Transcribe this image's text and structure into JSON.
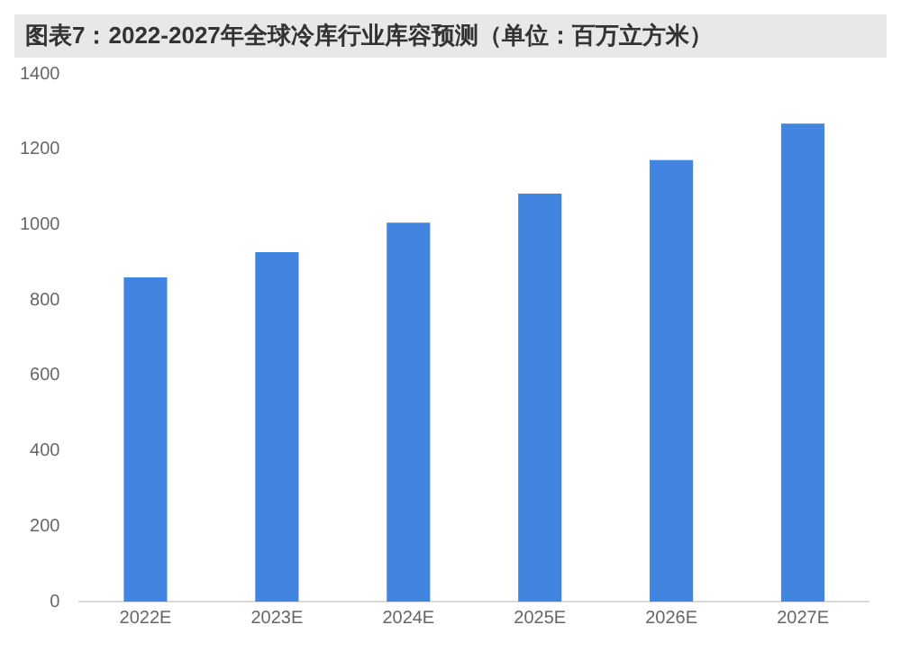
{
  "chart_data": {
    "type": "bar",
    "title": "图表7：2022-2027年全球冷库行业库容预测（单位：百万立方米）",
    "categories": [
      "2022E",
      "2023E",
      "2024E",
      "2025E",
      "2026E",
      "2027E"
    ],
    "values": [
      860,
      927,
      1005,
      1082,
      1171,
      1268
    ],
    "color": "#4285e0",
    "ylim": [
      0,
      1400
    ],
    "yticks": [
      0,
      200,
      400,
      600,
      800,
      1000,
      1200,
      1400
    ],
    "grid": false,
    "legend": false
  }
}
